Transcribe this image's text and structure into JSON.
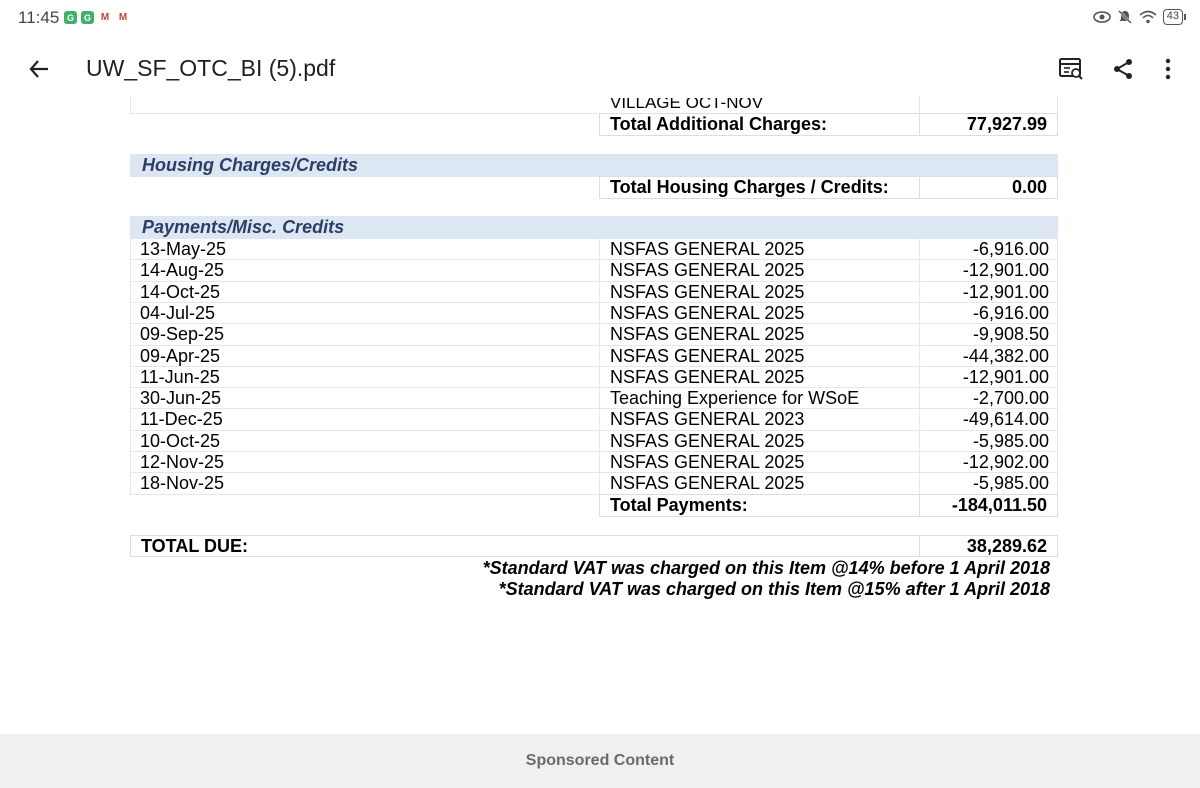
{
  "status_bar": {
    "time": "11:45",
    "notifications": [
      "G",
      "G",
      "M",
      "M"
    ],
    "battery": "43"
  },
  "app_bar": {
    "title": "UW_SF_OTC_BI (5).pdf",
    "icons": [
      "back-arrow-icon",
      "document-search-icon",
      "share-icon",
      "more-vert-icon"
    ]
  },
  "document": {
    "cut_off_text": "VILLAGE OCT-NOV",
    "additional_total_label": "Total Additional Charges:",
    "additional_total_value": "77,927.99",
    "housing_section_title": "Housing Charges/Credits",
    "housing_total_label": "Total Housing Charges / Credits:",
    "housing_total_value": "0.00",
    "payments_section_title": "Payments/Misc. Credits",
    "payments": [
      {
        "date": "13-May-25",
        "description": "NSFAS GENERAL 2025",
        "amount": "-6,916.00"
      },
      {
        "date": "14-Aug-25",
        "description": "NSFAS GENERAL 2025",
        "amount": "-12,901.00"
      },
      {
        "date": "14-Oct-25",
        "description": "NSFAS GENERAL 2025",
        "amount": "-12,901.00"
      },
      {
        "date": "04-Jul-25",
        "description": "NSFAS GENERAL 2025",
        "amount": "-6,916.00"
      },
      {
        "date": "09-Sep-25",
        "description": "NSFAS GENERAL 2025",
        "amount": "-9,908.50"
      },
      {
        "date": "09-Apr-25",
        "description": "NSFAS GENERAL 2025",
        "amount": "-44,382.00"
      },
      {
        "date": "11-Jun-25",
        "description": "NSFAS GENERAL 2025",
        "amount": "-12,901.00"
      },
      {
        "date": "30-Jun-25",
        "description": "Teaching Experience for WSoE",
        "amount": "-2,700.00"
      },
      {
        "date": "11-Dec-25",
        "description": "NSFAS GENERAL 2023",
        "amount": "-49,614.00"
      },
      {
        "date": "10-Oct-25",
        "description": "NSFAS GENERAL 2025",
        "amount": "-5,985.00"
      },
      {
        "date": "12-Nov-25",
        "description": "NSFAS GENERAL 2025",
        "amount": "-12,902.00"
      },
      {
        "date": "18-Nov-25",
        "description": "NSFAS GENERAL 2025",
        "amount": "-5,985.00"
      }
    ],
    "payments_total_label": "Total Payments:",
    "payments_total_value": "-184,011.50",
    "total_due_label": "TOTAL DUE:",
    "total_due_value": "38,289.62",
    "vat_notes": [
      "*Standard VAT was charged on this Item @14% before 1 April 2018",
      "*Standard VAT was charged on this Item @15% after 1 April 2018"
    ]
  },
  "footer": {
    "sponsored_label": "Sponsored Content"
  },
  "colors": {
    "section_band": "#dde6f3",
    "section_title": "#2c3e66",
    "footer_bg": "#f0f0f0"
  }
}
